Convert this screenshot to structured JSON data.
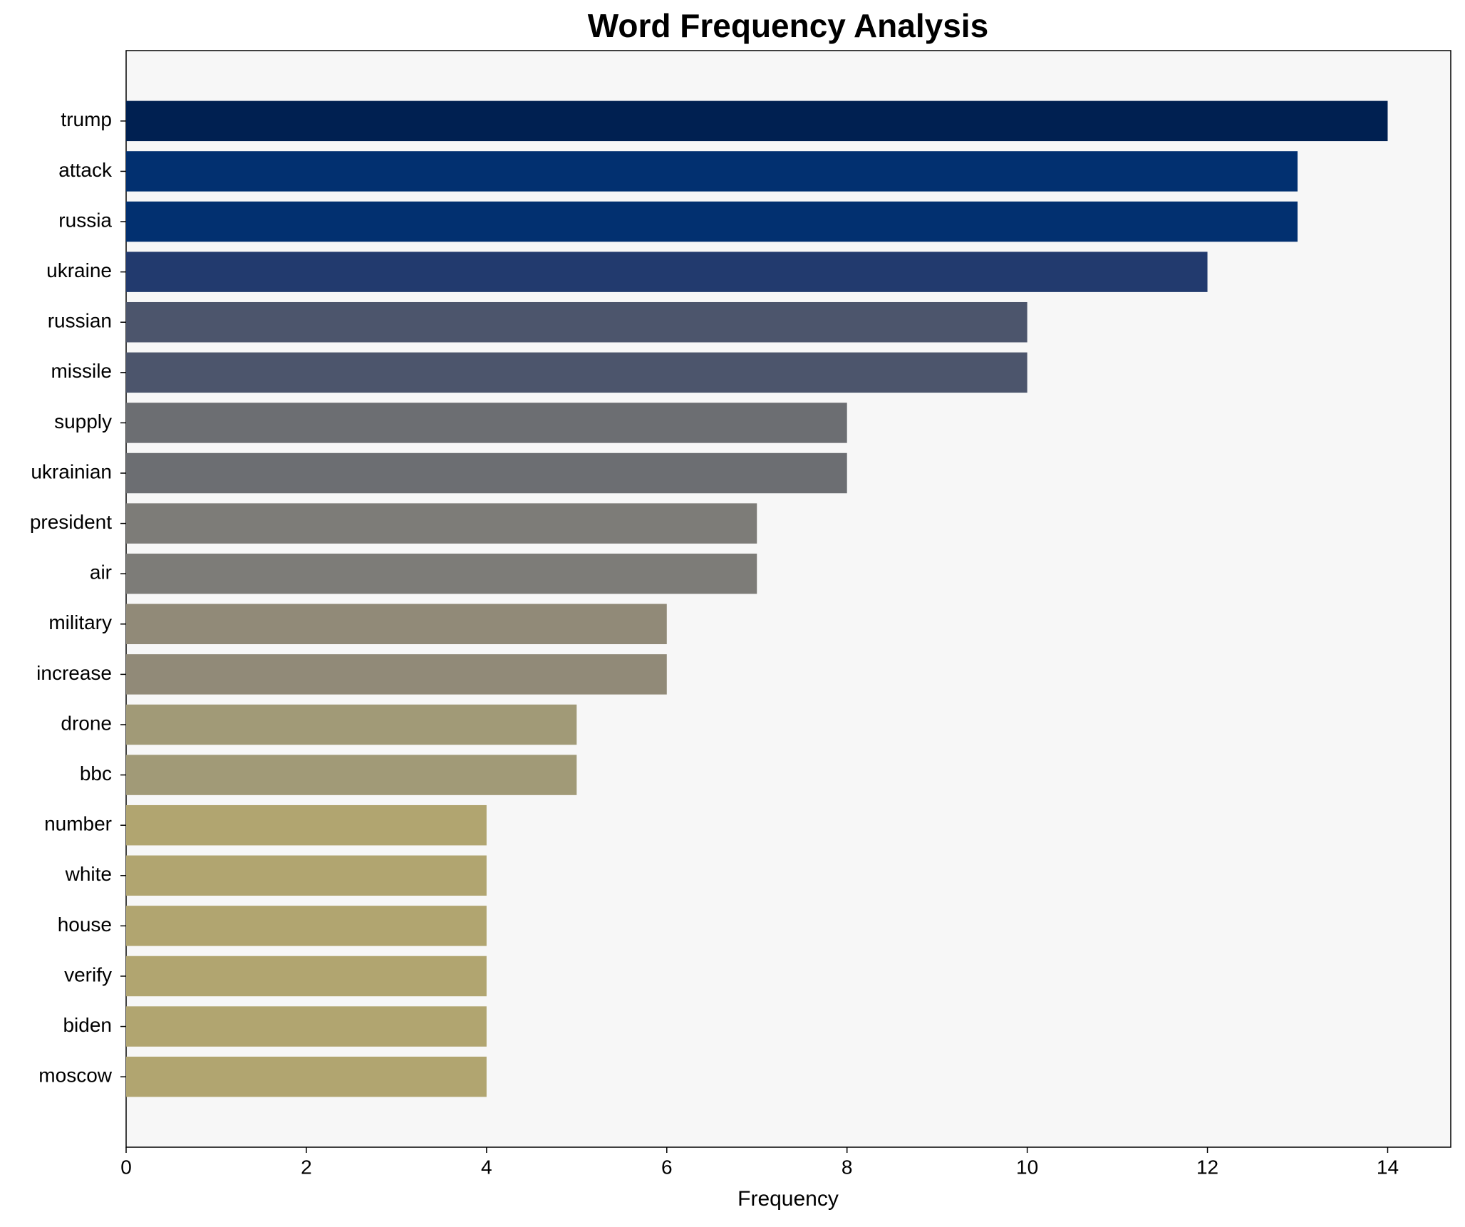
{
  "chart_data": {
    "type": "barh",
    "title": "Word Frequency Analysis",
    "x_label": "Frequency",
    "categories": [
      "trump",
      "attack",
      "russia",
      "ukraine",
      "russian",
      "missile",
      "supply",
      "ukrainian",
      "president",
      "air",
      "military",
      "increase",
      "drone",
      "bbc",
      "number",
      "white",
      "house",
      "verify",
      "biden",
      "moscow"
    ],
    "values": [
      14,
      13,
      13,
      12,
      10,
      10,
      8,
      8,
      7,
      7,
      6,
      6,
      5,
      5,
      4,
      4,
      4,
      4,
      4,
      4
    ],
    "colors": [
      "#002051",
      "#023070",
      "#023070",
      "#223a6e",
      "#4c556c",
      "#4c556c",
      "#6c6e72",
      "#6c6e72",
      "#7d7c78",
      "#7d7c78",
      "#918a78",
      "#918a78",
      "#a19a77",
      "#a19a77",
      "#b1a570",
      "#b1a570",
      "#b1a570",
      "#b1a570",
      "#b1a570",
      "#b1a570"
    ],
    "xlim": [
      0,
      14.7
    ],
    "xticks": [
      0,
      2,
      4,
      6,
      8,
      10,
      12,
      14
    ],
    "grid": false
  }
}
